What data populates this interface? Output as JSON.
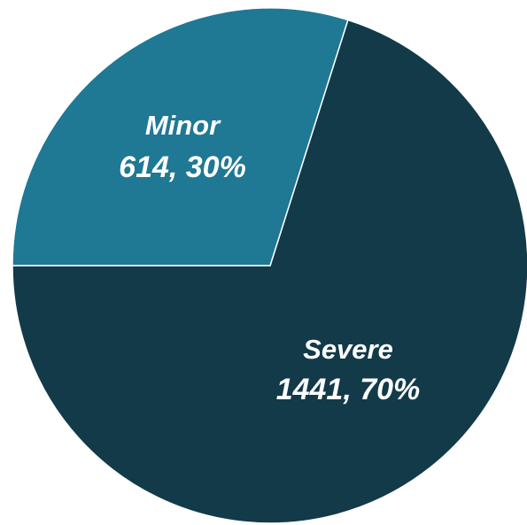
{
  "chart_data": {
    "type": "pie",
    "slices": [
      {
        "label": "Severe",
        "value": 1441,
        "percent": "70%",
        "value_text": "1441, 70%",
        "color": "#123a49"
      },
      {
        "label": "Minor",
        "value": 614,
        "percent": "30%",
        "value_text": "614, 30%",
        "color": "#1f7894"
      }
    ],
    "legend": "none",
    "labels_inside": true
  }
}
